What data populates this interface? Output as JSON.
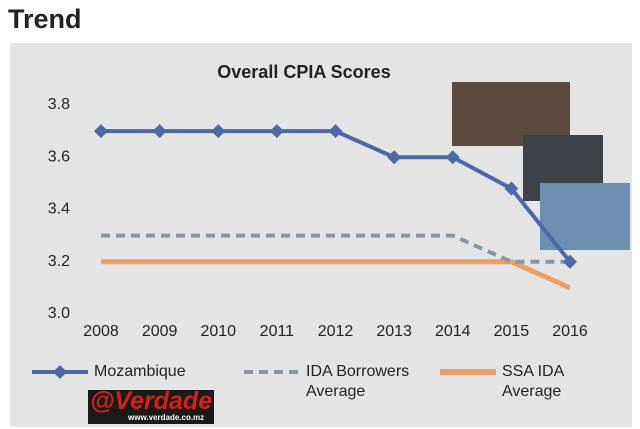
{
  "header_title": "Trend",
  "logo": {
    "name": "@Verdade",
    "url": "www.verdade.co.mz"
  },
  "chart_data": {
    "type": "line",
    "title": "Overall CPIA Scores",
    "categories": [
      "2008",
      "2009",
      "2010",
      "2011",
      "2012",
      "2013",
      "2014",
      "2015",
      "2016"
    ],
    "series": [
      {
        "name": "Mozambique",
        "color": "#4e67a8",
        "style": "solid-diamond",
        "values": [
          3.7,
          3.7,
          3.7,
          3.7,
          3.7,
          3.6,
          3.6,
          3.48,
          3.2
        ]
      },
      {
        "name": "IDA Borrowers Average",
        "color": "#8995a8",
        "style": "dashed",
        "values": [
          3.3,
          3.3,
          3.3,
          3.3,
          3.3,
          3.3,
          3.3,
          3.2,
          3.2
        ]
      },
      {
        "name": "SSA IDA Average",
        "color": "#e9a060",
        "style": "solid",
        "values": [
          3.2,
          3.2,
          3.2,
          3.2,
          3.2,
          3.2,
          3.2,
          3.2,
          3.1
        ]
      }
    ],
    "ylim": [
      3.0,
      3.8
    ],
    "yticks": [
      {
        "value": 3.0,
        "label": "3.0"
      },
      {
        "value": 3.2,
        "label": "3.2"
      },
      {
        "value": 3.4,
        "label": "3.4"
      },
      {
        "value": 3.6,
        "label": "3.6"
      },
      {
        "value": 3.8,
        "label": "3.8"
      }
    ],
    "grid": false
  }
}
